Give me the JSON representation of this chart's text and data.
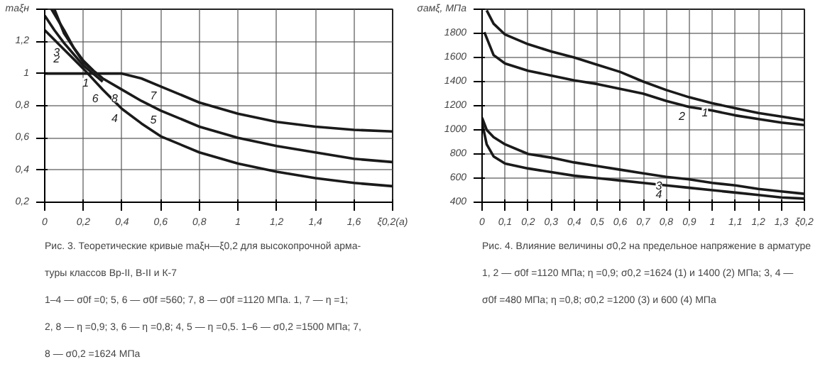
{
  "chart_data": [
    {
      "type": "line",
      "xlim": [
        0,
        1.8
      ],
      "ylim": [
        0.2,
        1.4
      ],
      "xticks": [
        {
          "value": 0,
          "label": "0"
        },
        {
          "value": 0.2,
          "label": "0,2"
        },
        {
          "value": 0.4,
          "label": "0,4"
        },
        {
          "value": 0.6,
          "label": "0,6"
        },
        {
          "value": 0.8,
          "label": "0,8"
        },
        {
          "value": 1,
          "label": "1"
        },
        {
          "value": 1.2,
          "label": "1,2"
        },
        {
          "value": 1.4,
          "label": "1,4"
        },
        {
          "value": 1.6,
          "label": "1,6"
        },
        {
          "value": 1.8,
          "label": "ξ0,2(а)"
        }
      ],
      "yticks": [
        {
          "value": 0.2,
          "label": "0,2"
        },
        {
          "value": 0.4,
          "label": "0,4"
        },
        {
          "value": 0.6,
          "label": "0,6"
        },
        {
          "value": 0.8,
          "label": "0,8"
        },
        {
          "value": 1,
          "label": "1"
        },
        {
          "value": 1.2,
          "label": "1,2"
        },
        {
          "value": 1.4,
          "label": "mаξн"
        }
      ],
      "grid": true,
      "color": "#1a1a1a",
      "series": [
        {
          "x": [
            0,
            0.2,
            0.4,
            0.5,
            0.6,
            0.8,
            1.0,
            1.2,
            1.4,
            1.6,
            1.8
          ],
          "values": [
            1,
            1,
            1,
            0.97,
            0.92,
            0.82,
            0.75,
            0.7,
            0.67,
            0.65,
            0.64
          ]
        },
        {
          "x": [
            0.05,
            0.1,
            0.2,
            0.3,
            0.4,
            0.5,
            0.6,
            0.8,
            1.0,
            1.2,
            1.4,
            1.6,
            1.8
          ],
          "values": [
            1.4,
            1.25,
            1.07,
            0.97,
            0.9,
            0.83,
            0.77,
            0.67,
            0.6,
            0.55,
            0.51,
            0.47,
            0.45
          ]
        },
        {
          "x": [
            0,
            0.1,
            0.2,
            0.3,
            0.4,
            0.5,
            0.6,
            0.8,
            1.0,
            1.2,
            1.4,
            1.6,
            1.8
          ],
          "values": [
            1.27,
            1.15,
            1.03,
            0.9,
            0.78,
            0.69,
            0.61,
            0.51,
            0.44,
            0.39,
            0.35,
            0.32,
            0.3
          ]
        },
        {
          "x": [
            0.035,
            0.1,
            0.15,
            0.2,
            0.25
          ],
          "values": [
            1.4,
            1.27,
            1.16,
            1.08,
            1.02
          ]
        },
        {
          "x": [
            0,
            0.05,
            0.1,
            0.15,
            0.2,
            0.25,
            0.3
          ],
          "values": [
            1.36,
            1.27,
            1.19,
            1.12,
            1.05,
            1.0,
            0.95
          ]
        }
      ],
      "annotations": [
        {
          "text": "1",
          "x": 0.25,
          "y": 1.0
        },
        {
          "text": "2",
          "x": 0.1,
          "y": 1.15
        },
        {
          "text": "3",
          "x": 0.1,
          "y": 1.19
        },
        {
          "text": "4",
          "x": 0.4,
          "y": 0.78
        },
        {
          "text": "5",
          "x": 0.6,
          "y": 0.77
        },
        {
          "text": "6",
          "x": 0.3,
          "y": 0.9
        },
        {
          "text": "7",
          "x": 0.6,
          "y": 0.92
        },
        {
          "text": "8",
          "x": 0.4,
          "y": 0.9
        },
        "Рис. 3. Теоретические кривые mаξн—ξ0,2 для высокопрочной арма-",
        "туры классов Вр-II, В-II и К-7",
        "1–4 — σ0f =0; 5, 6 — σ0f =560; 7, 8 — σ0f =1120 МПа. 1, 7 — η =1;",
        "2, 8 — η =0,9; 3, 6 — η =0,8; 4, 5 — η =0,5. 1–6 — σ0,2 =1500 МПа; 7,",
        "8 — σ0,2 =1624 МПа"
      ]
    },
    {
      "type": "line",
      "xlim": [
        0,
        1.4
      ],
      "ylim": [
        400,
        2000
      ],
      "xticks": [
        {
          "value": 0,
          "label": "0"
        },
        {
          "value": 0.1,
          "label": "0,1"
        },
        {
          "value": 0.2,
          "label": "0,2"
        },
        {
          "value": 0.3,
          "label": "0,3"
        },
        {
          "value": 0.4,
          "label": "0,4"
        },
        {
          "value": 0.5,
          "label": "0,5"
        },
        {
          "value": 0.6,
          "label": "0,6"
        },
        {
          "value": 0.7,
          "label": "0,7"
        },
        {
          "value": 0.8,
          "label": "0,8"
        },
        {
          "value": 0.9,
          "label": "0,9"
        },
        {
          "value": 1,
          "label": "1"
        },
        {
          "value": 1.1,
          "label": "1,1"
        },
        {
          "value": 1.2,
          "label": "1,2"
        },
        {
          "value": 1.3,
          "label": "1,3"
        },
        {
          "value": 1.4,
          "label": "ξ0,2"
        }
      ],
      "yticks": [
        400,
        600,
        800,
        1000,
        1200,
        1400,
        1600,
        1800,
        {
          "value": 2000,
          "label": "σамξ, МПа"
        }
      ],
      "grid": true,
      "color": "#1a1a1a",
      "series": [
        {
          "x": [
            0.02,
            0.05,
            0.1,
            0.2,
            0.3,
            0.4,
            0.5,
            0.6,
            0.7,
            0.8,
            0.9,
            1.0,
            1.1,
            1.2,
            1.3,
            1.4
          ],
          "values": [
            1990,
            1880,
            1790,
            1710,
            1650,
            1600,
            1540,
            1480,
            1400,
            1330,
            1270,
            1220,
            1180,
            1140,
            1110,
            1080
          ]
        },
        {
          "x": [
            0.01,
            0.05,
            0.1,
            0.2,
            0.3,
            0.4,
            0.5,
            0.6,
            0.7,
            0.8,
            0.9,
            1.0,
            1.1,
            1.2,
            1.3,
            1.4
          ],
          "values": [
            1810,
            1620,
            1550,
            1490,
            1450,
            1410,
            1380,
            1340,
            1300,
            1240,
            1190,
            1160,
            1120,
            1090,
            1060,
            1040
          ]
        },
        {
          "x": [
            0,
            0.02,
            0.05,
            0.1,
            0.2,
            0.3,
            0.4,
            0.5,
            0.6,
            0.7,
            0.8,
            0.9,
            1.0,
            1.1,
            1.2,
            1.3,
            1.4
          ],
          "values": [
            1100,
            1000,
            940,
            880,
            800,
            770,
            730,
            700,
            670,
            640,
            610,
            590,
            560,
            540,
            510,
            490,
            470
          ]
        },
        {
          "x": [
            0,
            0.02,
            0.05,
            0.1,
            0.2,
            0.3,
            0.4,
            0.5,
            0.6,
            0.7,
            0.8,
            0.9,
            1.0,
            1.1,
            1.2,
            1.3,
            1.4
          ],
          "values": [
            1060,
            880,
            780,
            720,
            680,
            650,
            620,
            600,
            580,
            560,
            540,
            520,
            500,
            480,
            460,
            440,
            430
          ]
        }
      ],
      "annotations": [
        {
          "text": "1",
          "x": 1.0,
          "y": 1220
        },
        {
          "text": "2",
          "x": 0.9,
          "y": 1190
        },
        {
          "text": "3",
          "x": 0.8,
          "y": 610
        },
        {
          "text": "4",
          "x": 0.8,
          "y": 540
        },
        "Рис. 4. Влияние величины σ0,2 на предельное напряжение в арматуре",
        "1, 2 — σ0f =1120 МПа; η =0,9; σ0,2 =1624 (1) и 1400 (2) МПа; 3, 4 —",
        "σ0f =480 МПа; η =0,8; σ0,2 =1200 (3) и 600 (4) МПа"
      ]
    }
  ]
}
